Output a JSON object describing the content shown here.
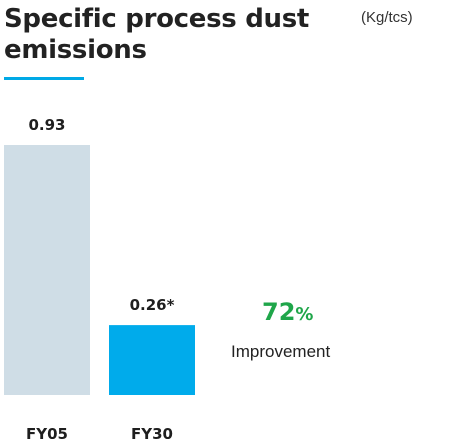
{
  "header": {
    "title": "Specific process dust emissions",
    "unit": "(Kg/tcs)"
  },
  "highlight": {
    "value": "72",
    "symbol": "%",
    "label": "Improvement"
  },
  "colors": {
    "accent": "#00a9e6",
    "bar_base": "#cfdde6",
    "bar_target": "#00abeb",
    "highlight": "#1fa64a"
  },
  "chart_data": {
    "type": "bar",
    "title": "Specific process dust emissions",
    "ylabel": "(Kg/tcs)",
    "categories": [
      "FY05",
      "FY30"
    ],
    "values": [
      0.93,
      0.26
    ],
    "data_labels": [
      "0.93",
      "0.26*"
    ],
    "ylim": [
      0,
      0.93
    ],
    "grid": false
  }
}
